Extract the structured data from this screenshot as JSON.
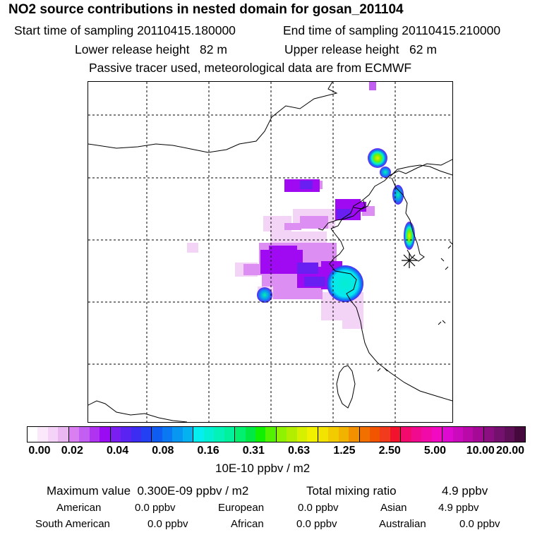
{
  "header": {
    "title": "NO2 source contributions in nested domain for gosan_201104",
    "start_label": "Start time of sampling 20110415.180000",
    "end_label": "End time of sampling 20110415.210000",
    "lower_label": "Lower release height   82 m",
    "upper_label": "Upper release height   62 m",
    "tracer_note": "Passive tracer used, meteorological data are from ECMWF"
  },
  "legend": {
    "ticks": [
      "0.00",
      "0.02",
      "0.04",
      "0.08",
      "0.16",
      "0.31",
      "0.63",
      "1.25",
      "2.50",
      "5.00",
      "10.00",
      "20.00"
    ],
    "units": "10E-10 ppbv / m2",
    "colors": [
      "#ffffff",
      "#fbe9fb",
      "#f5d2f8",
      "#eab7f2",
      "#d97ff2",
      "#c35ef2",
      "#b133f2",
      "#9a0af2",
      "#7a1ef2",
      "#5a23f2",
      "#3d2cf2",
      "#2340f2",
      "#0f5cf2",
      "#0a78f2",
      "#0796f2",
      "#04b2f2",
      "#05eef0",
      "#03f0d4",
      "#02f2b8",
      "#00f29c",
      "#03ef70",
      "#00e844",
      "#10f000",
      "#52f200",
      "#8ef200",
      "#b3ee00",
      "#d7f000",
      "#f2f200",
      "#f2e300",
      "#f2cc00",
      "#f2b200",
      "#f29000",
      "#f27000",
      "#f25500",
      "#f23a1c",
      "#f2122e",
      "#f20a6c",
      "#f20a8e",
      "#f20aa8",
      "#f20ac2",
      "#de0ad2",
      "#cc0abd",
      "#b90aa9",
      "#a40a96",
      "#8b0f80",
      "#74106d",
      "#5e0f58",
      "#45093e"
    ]
  },
  "stats": {
    "max_label": "Maximum value  0.300E-09 ppbv / m2",
    "total_label": "Total mixing ratio",
    "total_value": "4.9 ppbv",
    "american_label": "American",
    "american_value": "0.0 ppbv",
    "european_label": "European",
    "european_value": "0.0 ppbv",
    "asian_label": "Asian",
    "asian_value": "4.9 ppbv",
    "south_american_label": "South American",
    "south_american_value": "0.0 ppbv",
    "african_label": "African",
    "african_value": "0.0 ppbv",
    "australian_label": "Australian",
    "australian_value": "0.0 ppbv"
  }
}
